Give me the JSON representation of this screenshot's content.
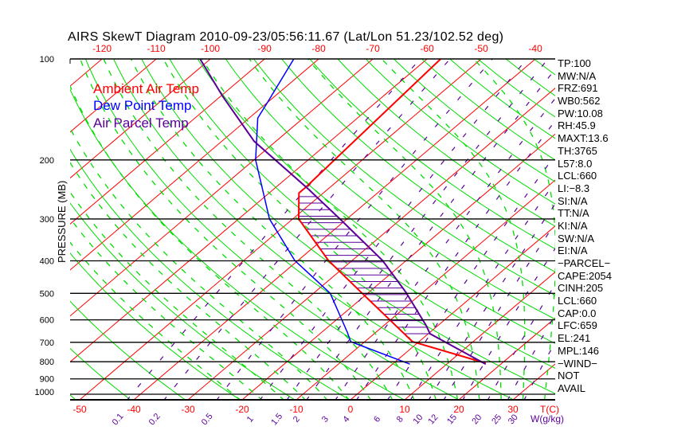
{
  "chart_data": {
    "type": "line",
    "subtype": "skew-t log-p",
    "title": "AIRS SkewT Diagram 2010-09-23/05:56:11.67 (Lat/Lon 51.23/102.52 deg)",
    "ylabel": "PRESSURE (MB)",
    "xlabel": "T(C)",
    "mixing_ratio_label": "W(g/kg)",
    "pressure_ticks": [
      100,
      200,
      300,
      400,
      500,
      600,
      700,
      800,
      900,
      1000
    ],
    "pressure_tick_labels": [
      "100",
      "200",
      "300",
      "400",
      "500",
      "600",
      "700",
      "800",
      "900",
      "1000"
    ],
    "ylim_mb": [
      1040,
      100
    ],
    "bottom_temp_ticks": [
      -50,
      -40,
      -30,
      -20,
      -10,
      0,
      10,
      20,
      30
    ],
    "bottom_temp_labels": [
      "-50",
      "-40",
      "-30",
      "-20",
      "-10",
      "0",
      "10",
      "20",
      "30"
    ],
    "top_temp_ticks": [
      -120,
      -110,
      -100,
      -90,
      -80,
      -70,
      -60,
      -50,
      -40
    ],
    "top_temp_labels": [
      "-120",
      "-110",
      "-100",
      "-90",
      "-80",
      "-70",
      "-60",
      "-50",
      "-40"
    ],
    "mixing_ratio_ticks": [
      0.1,
      0.2,
      0.5,
      1,
      1.5,
      2,
      3,
      4,
      6,
      8,
      10,
      12,
      15,
      20,
      25,
      30
    ],
    "mixing_ratio_labels": [
      "0.1",
      "0.2",
      "0.5",
      "1",
      "1.5",
      "2",
      "3",
      "4",
      "6",
      "8",
      "10",
      "12",
      "15",
      "20",
      "25",
      "30"
    ],
    "legend": [
      {
        "label": "Ambient Air Temp",
        "color": "#ff0000"
      },
      {
        "label": "Dew Point Temp",
        "color": "#0000ff"
      },
      {
        "label": "Air Parcel Temp",
        "color": "#5a0099"
      }
    ],
    "series": [
      {
        "name": "Ambient Air Temp",
        "color": "#ff0000",
        "p": [
          808,
          697,
          500,
          399,
          300,
          251,
          241,
          100
        ],
        "t": [
          17.0,
          -1.2,
          -21.0,
          -34.4,
          -48.9,
          -54.5,
          -54.5,
          -57.5
        ]
      },
      {
        "name": "Dew Point Temp",
        "color": "#0000ff",
        "p": [
          813,
          697,
          653,
          500,
          399,
          300,
          200,
          150,
          134,
          100
        ],
        "t": [
          3.2,
          -12.6,
          -15.3,
          -26.9,
          -40.6,
          -54.3,
          -69.7,
          -78.4,
          -80.1,
          -84.6
        ]
      },
      {
        "name": "Air Parcel Temp",
        "color": "#5a0099",
        "p": [
          813,
          660,
          625,
          497,
          399,
          302,
          244,
          176,
          129,
          100
        ],
        "t": [
          17.2,
          0.3,
          -2.1,
          -13.1,
          -24.4,
          -40.9,
          -53.7,
          -74.0,
          -89.7,
          -101.9
        ]
      }
    ],
    "cape_shading": {
      "from_mb": 660,
      "to_mb": 250,
      "color": "#5a0099"
    },
    "colors": {
      "isotherm": "#ff0000",
      "dry_adiabat": "#00dd00",
      "moist_adiabat": "#00dd00",
      "mixing_ratio": "#5a0099",
      "grid": "#000000"
    }
  },
  "stats": [
    "TP:100",
    "MW:N/A",
    "FRZ:691",
    "WB0:562",
    "PW:10.08",
    "RH:45.9",
    "MAXT:13.6",
    "TH:3765",
    "L57:8.0",
    "LCL:660",
    "LI:−8.3",
    "SI:N/A",
    "TT:N/A",
    "KI:N/A",
    "SW:N/A",
    "EI:N/A",
    "−PARCEL−",
    "CAPE:2054",
    "CINH:205",
    "LCL:660",
    "CAP:0.0",
    "LFC:659",
    "EL:241",
    "MPL:146",
    "−WIND−",
    "NOT",
    "AVAIL"
  ]
}
